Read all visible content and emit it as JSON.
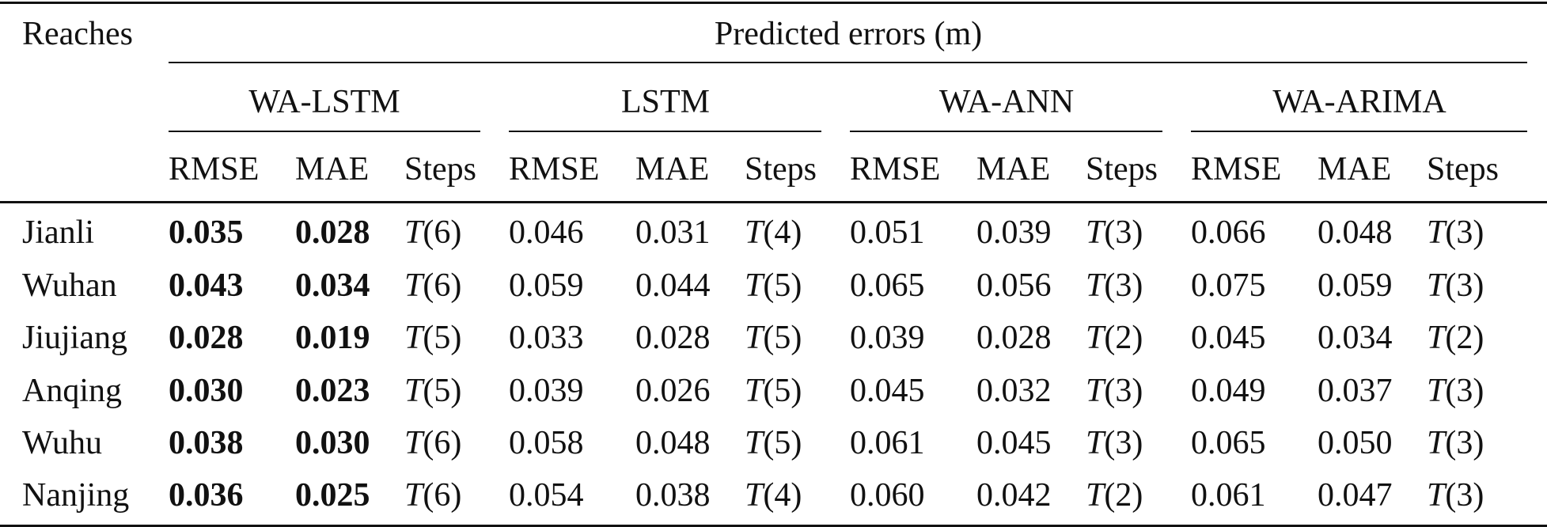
{
  "table": {
    "row_header_label": "Reaches",
    "group_header": "Predicted errors (m)",
    "models": [
      "WA-LSTM",
      "LSTM",
      "WA-ANN",
      "WA-ARIMA"
    ],
    "metrics": [
      "RMSE",
      "MAE",
      "Steps"
    ],
    "rows": [
      {
        "reach": "Jianli",
        "values": [
          [
            "0.035",
            "0.028",
            "6"
          ],
          [
            "0.046",
            "0.031",
            "4"
          ],
          [
            "0.051",
            "0.039",
            "3"
          ],
          [
            "0.066",
            "0.048",
            "3"
          ]
        ]
      },
      {
        "reach": "Wuhan",
        "values": [
          [
            "0.043",
            "0.034",
            "6"
          ],
          [
            "0.059",
            "0.044",
            "5"
          ],
          [
            "0.065",
            "0.056",
            "3"
          ],
          [
            "0.075",
            "0.059",
            "3"
          ]
        ]
      },
      {
        "reach": "Jiujiang",
        "values": [
          [
            "0.028",
            "0.019",
            "5"
          ],
          [
            "0.033",
            "0.028",
            "5"
          ],
          [
            "0.039",
            "0.028",
            "2"
          ],
          [
            "0.045",
            "0.034",
            "2"
          ]
        ]
      },
      {
        "reach": "Anqing",
        "values": [
          [
            "0.030",
            "0.023",
            "5"
          ],
          [
            "0.039",
            "0.026",
            "5"
          ],
          [
            "0.045",
            "0.032",
            "3"
          ],
          [
            "0.049",
            "0.037",
            "3"
          ]
        ]
      },
      {
        "reach": "Wuhu",
        "values": [
          [
            "0.038",
            "0.030",
            "6"
          ],
          [
            "0.058",
            "0.048",
            "5"
          ],
          [
            "0.061",
            "0.045",
            "3"
          ],
          [
            "0.065",
            "0.050",
            "3"
          ]
        ]
      },
      {
        "reach": "Nanjing",
        "values": [
          [
            "0.036",
            "0.025",
            "6"
          ],
          [
            "0.054",
            "0.038",
            "4"
          ],
          [
            "0.060",
            "0.042",
            "2"
          ],
          [
            "0.061",
            "0.047",
            "3"
          ]
        ]
      }
    ],
    "bold_model": "WA-LSTM",
    "step_symbol": "T"
  }
}
